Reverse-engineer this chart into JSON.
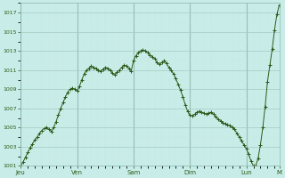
{
  "bg_color": "#c8ede8",
  "line_color": "#2d5a1b",
  "grid_color_major": "#a8c8c4",
  "grid_color_minor": "#c8e4e0",
  "ylim": [
    1001,
    1018
  ],
  "day_labels": [
    "Jeu",
    "Ven",
    "Sam",
    "Dim",
    "Lun",
    "M"
  ],
  "day_positions": [
    0,
    24,
    48,
    72,
    96,
    110
  ],
  "x_data": [
    0,
    1,
    2,
    3,
    4,
    5,
    6,
    7,
    8,
    9,
    10,
    11,
    12,
    13,
    14,
    15,
    16,
    17,
    18,
    19,
    20,
    21,
    22,
    23,
    24,
    25,
    26,
    27,
    28,
    29,
    30,
    31,
    32,
    33,
    34,
    35,
    36,
    37,
    38,
    39,
    40,
    41,
    42,
    43,
    44,
    45,
    46,
    47,
    48,
    49,
    50,
    51,
    52,
    53,
    54,
    55,
    56,
    57,
    58,
    59,
    60,
    61,
    62,
    63,
    64,
    65,
    66,
    67,
    68,
    69,
    70,
    71,
    72,
    73,
    74,
    75,
    76,
    77,
    78,
    79,
    80,
    81,
    82,
    83,
    84,
    85,
    86,
    87,
    88,
    89,
    90,
    91,
    92,
    93,
    94,
    95,
    96,
    97,
    98,
    99,
    100,
    101,
    102,
    103,
    104,
    105,
    106,
    107,
    108,
    109,
    110
  ],
  "y_data": [
    1001.0,
    1001.4,
    1001.9,
    1002.4,
    1002.9,
    1003.3,
    1003.7,
    1004.0,
    1004.4,
    1004.7,
    1004.9,
    1005.0,
    1004.8,
    1004.6,
    1005.0,
    1005.6,
    1006.3,
    1007.0,
    1007.6,
    1008.2,
    1008.7,
    1009.0,
    1009.1,
    1009.0,
    1008.8,
    1009.3,
    1010.0,
    1010.6,
    1011.0,
    1011.2,
    1011.4,
    1011.3,
    1011.2,
    1011.0,
    1010.9,
    1011.1,
    1011.3,
    1011.2,
    1011.0,
    1010.7,
    1010.5,
    1010.8,
    1011.0,
    1011.3,
    1011.5,
    1011.4,
    1011.2,
    1010.9,
    1012.0,
    1012.5,
    1012.8,
    1013.0,
    1013.1,
    1013.0,
    1012.8,
    1012.6,
    1012.4,
    1012.2,
    1011.8,
    1011.6,
    1011.8,
    1012.0,
    1011.7,
    1011.3,
    1011.0,
    1010.6,
    1010.1,
    1009.5,
    1008.9,
    1008.2,
    1007.4,
    1006.7,
    1006.3,
    1006.2,
    1006.4,
    1006.6,
    1006.7,
    1006.6,
    1006.5,
    1006.4,
    1006.5,
    1006.6,
    1006.4,
    1006.1,
    1005.9,
    1005.7,
    1005.5,
    1005.4,
    1005.3,
    1005.2,
    1005.0,
    1004.8,
    1004.4,
    1004.0,
    1003.6,
    1003.2,
    1002.8,
    1002.2,
    1001.5,
    1001.0,
    1001.0,
    1001.8,
    1003.2,
    1005.0,
    1007.2,
    1009.8,
    1011.5,
    1013.2,
    1015.2,
    1016.8,
    1017.8
  ]
}
